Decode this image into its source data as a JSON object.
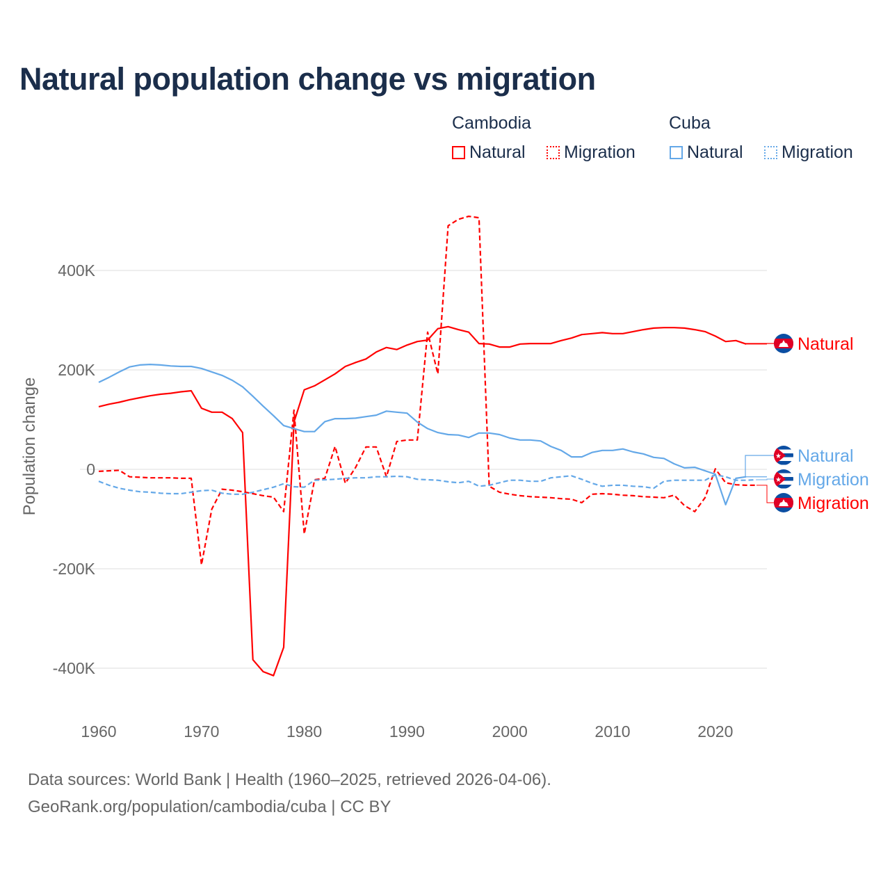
{
  "chart_data": {
    "type": "line",
    "title": "Natural population change vs migration",
    "xlabel": "",
    "ylabel": "Population change",
    "xlim": [
      1960,
      2025
    ],
    "ylim": [
      -450000,
      550000
    ],
    "x_ticks": [
      1960,
      1970,
      1980,
      1990,
      2000,
      2010,
      2020
    ],
    "x_tick_labels": [
      "1960",
      "1970",
      "1980",
      "1990",
      "2000",
      "2010",
      "2020"
    ],
    "y_ticks": [
      -400000,
      -200000,
      0,
      200000,
      400000
    ],
    "y_tick_labels": [
      "-400K",
      "-200K",
      "0",
      "200K",
      "400K"
    ],
    "grid": true,
    "legend_placement": "top-right",
    "legend_groups": [
      {
        "name": "Cambodia",
        "items": [
          "Natural",
          "Migration"
        ]
      },
      {
        "name": "Cuba",
        "items": [
          "Natural",
          "Migration"
        ]
      }
    ],
    "start_year": 1960,
    "series": [
      {
        "name": "Cambodia Natural",
        "label": "Natural",
        "country": "Cambodia",
        "color": "#ff0000",
        "dashed": false,
        "values_k": [
          126,
          131,
          135,
          140,
          144,
          148,
          151,
          153,
          156,
          158,
          123,
          115,
          115,
          102,
          74,
          -383,
          -407,
          -415,
          -358,
          95,
          160,
          168,
          180,
          192,
          207,
          215,
          222,
          236,
          245,
          241,
          250,
          257,
          260,
          283,
          287,
          281,
          276,
          253,
          252,
          246,
          246,
          252,
          253,
          253,
          253,
          259,
          264,
          271,
          273,
          275,
          273,
          273,
          277,
          281,
          284,
          285,
          285,
          284,
          281,
          277,
          268,
          257,
          259,
          252
        ]
      },
      {
        "name": "Cambodia Migration",
        "label": "Migration",
        "country": "Cambodia",
        "color": "#ff0000",
        "dashed": true,
        "values_k": [
          -4,
          -3,
          -2,
          -15,
          -16,
          -17,
          -17,
          -17,
          -18,
          -18,
          -192,
          -80,
          -40,
          -42,
          -45,
          -49,
          -53,
          -56,
          -85,
          119,
          -130,
          -21,
          -18,
          46,
          -28,
          4,
          45,
          45,
          -15,
          56,
          59,
          59,
          276,
          192,
          490,
          503,
          509,
          506,
          -34,
          -46,
          -50,
          -53,
          -55,
          -56,
          -57,
          -59,
          -60,
          -67,
          -50,
          -49,
          -50,
          -52,
          -53,
          -55,
          -56,
          -57,
          -52,
          -73,
          -85,
          -57,
          1,
          -27,
          -31,
          -32,
          -32
        ]
      },
      {
        "name": "Cuba Natural",
        "label": "Natural",
        "country": "Cuba",
        "color": "#64a8e8",
        "dashed": false,
        "values_k": [
          175,
          185,
          196,
          206,
          210,
          211,
          210,
          208,
          207,
          207,
          203,
          196,
          189,
          179,
          166,
          147,
          127,
          108,
          88,
          82,
          76,
          76,
          96,
          102,
          102,
          103,
          106,
          109,
          117,
          115,
          113,
          95,
          82,
          74,
          70,
          69,
          64,
          73,
          73,
          70,
          63,
          59,
          59,
          57,
          46,
          38,
          25,
          25,
          34,
          38,
          38,
          41,
          35,
          31,
          24,
          22,
          11,
          3,
          4,
          -3,
          -10,
          -71,
          -18,
          -15
        ]
      },
      {
        "name": "Cuba Migration",
        "label": "Migration",
        "country": "Cuba",
        "color": "#64a8e8",
        "dashed": true,
        "values_k": [
          -24,
          -32,
          -38,
          -42,
          -45,
          -46,
          -48,
          -49,
          -49,
          -46,
          -43,
          -42,
          -48,
          -50,
          -50,
          -46,
          -41,
          -36,
          -29,
          -35,
          -36,
          -22,
          -21,
          -20,
          -18,
          -17,
          -17,
          -15,
          -15,
          -14,
          -15,
          -20,
          -21,
          -22,
          -25,
          -27,
          -24,
          -34,
          -32,
          -27,
          -22,
          -22,
          -24,
          -24,
          -17,
          -15,
          -13,
          -20,
          -28,
          -34,
          -32,
          -32,
          -34,
          -35,
          -38,
          -24,
          -22,
          -22,
          -22,
          -22,
          -11,
          -15,
          -22,
          -22,
          -21
        ]
      }
    ]
  },
  "legend": {
    "group_cambodia": "Cambodia",
    "group_cuba": "Cuba",
    "natural": "Natural",
    "migration": "Migration"
  },
  "footer": {
    "line1": "Data sources: World Bank | Health (1960–2025, retrieved 2026-04-06).",
    "line2": "GeoRank.org/population/cambodia/cuba | CC BY"
  },
  "colors": {
    "cambodia": "#ff0000",
    "cuba": "#64a8e8",
    "title": "#1b2e4b"
  }
}
